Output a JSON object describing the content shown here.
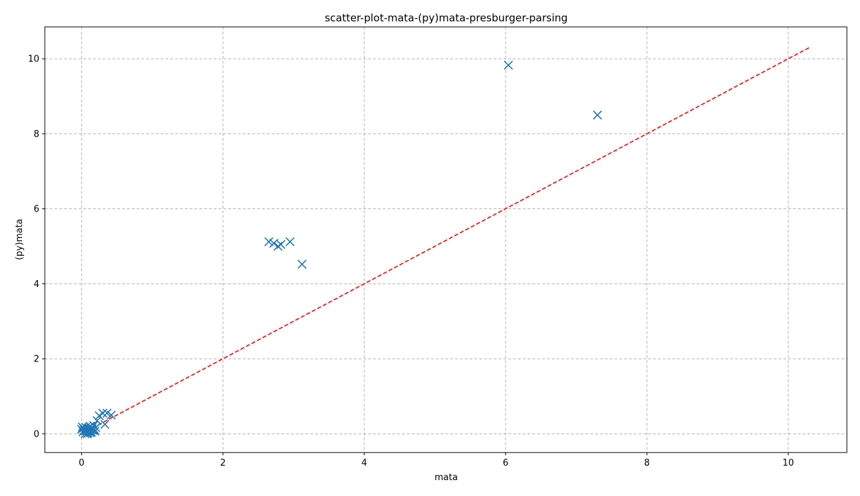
{
  "chart_data": {
    "type": "scatter",
    "title": "scatter-plot-mata-(py)mata-presburger-parsing",
    "xlabel": "mata",
    "ylabel": "(py)mata",
    "xlim": [
      -0.52,
      10.83
    ],
    "ylim": [
      -0.5,
      10.85
    ],
    "xticks": [
      0,
      2,
      4,
      6,
      8,
      10
    ],
    "yticks": [
      0,
      2,
      4,
      6,
      8,
      10
    ],
    "grid": true,
    "marker": "x",
    "colors": {
      "points": "#1f77b4",
      "reference_line": "#ff0000",
      "grid": "#b0b0b0"
    },
    "reference_line": {
      "style": "dashed",
      "points": [
        [
          0,
          0
        ],
        [
          10.3,
          10.3
        ]
      ]
    },
    "points": [
      [
        6.04,
        9.83
      ],
      [
        7.3,
        8.5
      ],
      [
        2.65,
        5.12
      ],
      [
        2.72,
        5.08
      ],
      [
        2.78,
        5.0
      ],
      [
        2.82,
        5.05
      ],
      [
        2.95,
        5.12
      ],
      [
        3.12,
        4.52
      ],
      [
        0.0,
        0.12
      ],
      [
        0.01,
        0.18
      ],
      [
        0.02,
        0.05
      ],
      [
        0.03,
        0.15
      ],
      [
        0.04,
        0.1
      ],
      [
        0.05,
        0.0
      ],
      [
        0.06,
        0.17
      ],
      [
        0.07,
        0.08
      ],
      [
        0.08,
        0.13
      ],
      [
        0.09,
        0.02
      ],
      [
        0.1,
        0.16
      ],
      [
        0.11,
        0.06
      ],
      [
        0.12,
        0.2
      ],
      [
        0.13,
        0.1
      ],
      [
        0.14,
        0.04
      ],
      [
        0.15,
        0.14
      ],
      [
        0.16,
        0.09
      ],
      [
        0.17,
        0.22
      ],
      [
        0.18,
        0.12
      ],
      [
        0.2,
        0.16
      ],
      [
        0.22,
        0.35
      ],
      [
        0.25,
        0.48
      ],
      [
        0.3,
        0.55
      ],
      [
        0.33,
        0.25
      ],
      [
        0.36,
        0.55
      ],
      [
        0.42,
        0.5
      ],
      [
        0.08,
        0.0
      ],
      [
        0.12,
        0.03
      ],
      [
        0.05,
        0.08
      ],
      [
        0.19,
        0.07
      ]
    ]
  }
}
